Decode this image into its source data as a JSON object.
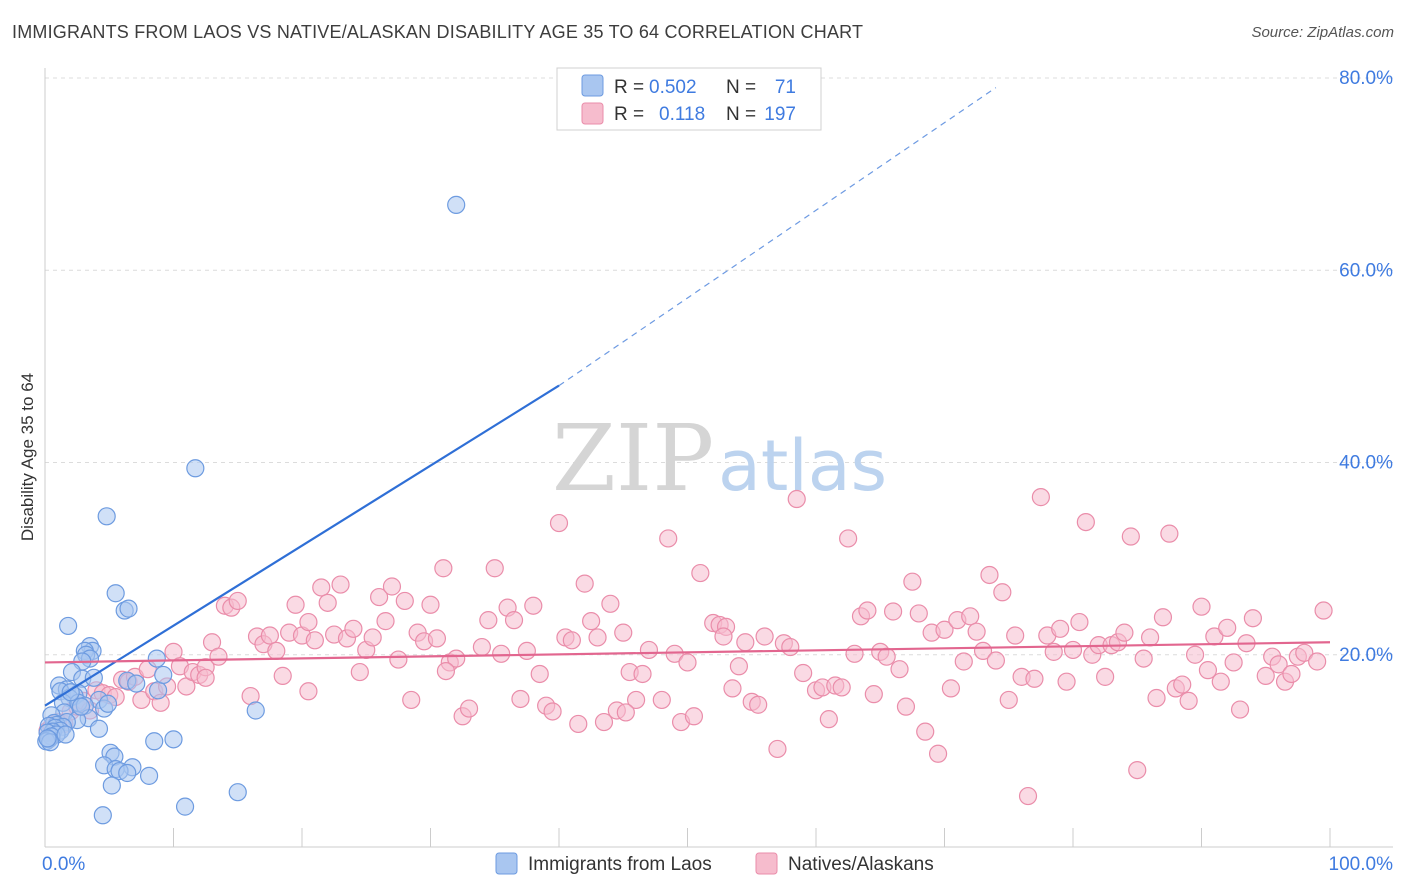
{
  "title": "IMMIGRANTS FROM LAOS VS NATIVE/ALASKAN DISABILITY AGE 35 TO 64 CORRELATION CHART",
  "source": "Source: ZipAtlas.com",
  "watermark": {
    "zip": "ZIP",
    "atlas": "atlas"
  },
  "colors": {
    "blue_fill": "#a9c6f0",
    "blue_edge": "#6d9be0",
    "blue_line": "#2f6fd6",
    "pink_fill": "#f6bccd",
    "pink_edge": "#ea8daa",
    "pink_line": "#e2668f",
    "grid": "#dcdcdc",
    "axis_text": "#3f7be0"
  },
  "legend_stats": {
    "r_label": "R =",
    "n_label": "N =",
    "rows": [
      {
        "series": "Immigrants from Laos",
        "r": "0.502",
        "n": "71"
      },
      {
        "series": "Natives/Alaskans",
        "r": "0.118",
        "n": "197"
      }
    ]
  },
  "chart_data": {
    "type": "scatter",
    "title": "IMMIGRANTS FROM LAOS VS NATIVE/ALASKAN DISABILITY AGE 35 TO 64 CORRELATION CHART",
    "xlabel": "",
    "ylabel": "Disability Age 35 to 64",
    "xlim": [
      0,
      100
    ],
    "ylim": [
      0,
      80
    ],
    "x_tick_labels": [
      "0.0%",
      "100.0%"
    ],
    "y_ticks": [
      20,
      40,
      60,
      80
    ],
    "y_tick_labels": [
      "20.0%",
      "40.0%",
      "60.0%",
      "80.0%"
    ],
    "legend_position": "bottom-center",
    "series": [
      {
        "name": "Immigrants from Laos",
        "color": "#a9c6f0",
        "trend": {
          "x1": 0,
          "y1": 14.7,
          "x2": 40,
          "y2": 48.0,
          "dashed_to_x": 74,
          "dashed_to_y": 79.0
        },
        "points": [
          [
            32,
            66.8
          ],
          [
            11.7,
            39.4
          ],
          [
            4.8,
            34.4
          ],
          [
            5.5,
            26.4
          ],
          [
            6.2,
            24.6
          ],
          [
            6.5,
            24.8
          ],
          [
            1.8,
            23.0
          ],
          [
            3.5,
            20.9
          ],
          [
            3.7,
            20.4
          ],
          [
            3.1,
            20.4
          ],
          [
            3.2,
            20.0
          ],
          [
            3.5,
            19.6
          ],
          [
            2.9,
            19.3
          ],
          [
            8.7,
            19.6
          ],
          [
            2.1,
            18.2
          ],
          [
            2.9,
            17.5
          ],
          [
            1.1,
            16.8
          ],
          [
            1.7,
            16.4
          ],
          [
            1.2,
            16.2
          ],
          [
            2.6,
            16.0
          ],
          [
            2.3,
            15.7
          ],
          [
            1.9,
            15.5
          ],
          [
            4.2,
            15.3
          ],
          [
            1.4,
            15.0
          ],
          [
            2.6,
            15.0
          ],
          [
            3.1,
            14.7
          ],
          [
            4.6,
            14.4
          ],
          [
            1.5,
            14.0
          ],
          [
            0.5,
            13.7
          ],
          [
            3.4,
            13.4
          ],
          [
            2.5,
            13.2
          ],
          [
            1.7,
            13.0
          ],
          [
            0.7,
            12.9
          ],
          [
            0.9,
            12.7
          ],
          [
            0.3,
            12.6
          ],
          [
            1.4,
            12.5
          ],
          [
            0.8,
            12.4
          ],
          [
            4.2,
            12.3
          ],
          [
            1.2,
            12.1
          ],
          [
            0.6,
            12.0
          ],
          [
            0.2,
            11.9
          ],
          [
            0.9,
            11.7
          ],
          [
            0.5,
            11.5
          ],
          [
            1.6,
            11.7
          ],
          [
            0.3,
            11.2
          ],
          [
            0.1,
            11.0
          ],
          [
            0.4,
            10.9
          ],
          [
            0.2,
            11.3
          ],
          [
            5.1,
            9.8
          ],
          [
            5.4,
            9.4
          ],
          [
            8.5,
            11.0
          ],
          [
            10.0,
            11.2
          ],
          [
            4.6,
            8.5
          ],
          [
            5.5,
            8.1
          ],
          [
            6.8,
            8.3
          ],
          [
            5.8,
            7.9
          ],
          [
            6.4,
            7.7
          ],
          [
            8.1,
            7.4
          ],
          [
            5.2,
            6.4
          ],
          [
            10.9,
            4.2
          ],
          [
            4.5,
            3.3
          ],
          [
            15.0,
            5.7
          ],
          [
            16.4,
            14.2
          ],
          [
            8.8,
            16.3
          ],
          [
            6.4,
            17.3
          ],
          [
            7.1,
            17.0
          ],
          [
            3.8,
            17.6
          ],
          [
            9.2,
            17.9
          ],
          [
            2.0,
            16.1
          ],
          [
            4.9,
            14.9
          ],
          [
            2.8,
            14.6
          ]
        ]
      },
      {
        "name": "Natives/Alaskans",
        "color": "#f6bccd",
        "trend": {
          "x1": 0,
          "y1": 19.2,
          "x2": 100,
          "y2": 21.3
        },
        "points": [
          [
            0.2,
            12.1
          ],
          [
            0.5,
            12.5
          ],
          [
            1.0,
            13.0
          ],
          [
            1.5,
            12.8
          ],
          [
            2.0,
            14.1
          ],
          [
            2.5,
            14.6
          ],
          [
            3.0,
            15.2
          ],
          [
            3.5,
            14.2
          ],
          [
            4.0,
            16.3
          ],
          [
            4.5,
            16.0
          ],
          [
            5.0,
            15.8
          ],
          [
            5.5,
            15.6
          ],
          [
            6.0,
            17.4
          ],
          [
            6.5,
            17.2
          ],
          [
            7.0,
            17.7
          ],
          [
            7.5,
            15.3
          ],
          [
            8.0,
            18.5
          ],
          [
            8.5,
            16.2
          ],
          [
            9.0,
            15.0
          ],
          [
            9.5,
            16.7
          ],
          [
            10.0,
            20.3
          ],
          [
            10.5,
            18.8
          ],
          [
            11.0,
            16.7
          ],
          [
            11.5,
            18.2
          ],
          [
            12.0,
            17.9
          ],
          [
            12.5,
            18.7
          ],
          [
            13.0,
            21.3
          ],
          [
            13.5,
            19.8
          ],
          [
            14.0,
            25.1
          ],
          [
            14.5,
            24.9
          ],
          [
            15.0,
            25.6
          ],
          [
            16.0,
            15.7
          ],
          [
            16.5,
            21.9
          ],
          [
            17.0,
            21.1
          ],
          [
            17.5,
            22.0
          ],
          [
            18.0,
            20.4
          ],
          [
            18.5,
            17.8
          ],
          [
            19.0,
            22.3
          ],
          [
            19.5,
            25.2
          ],
          [
            20.0,
            22.0
          ],
          [
            20.5,
            16.2
          ],
          [
            21.0,
            21.5
          ],
          [
            21.5,
            27.0
          ],
          [
            22.0,
            25.4
          ],
          [
            22.5,
            22.1
          ],
          [
            23.0,
            27.3
          ],
          [
            23.5,
            21.7
          ],
          [
            24.0,
            22.7
          ],
          [
            24.5,
            18.2
          ],
          [
            25.0,
            20.5
          ],
          [
            25.5,
            21.8
          ],
          [
            26.0,
            26.0
          ],
          [
            26.5,
            23.5
          ],
          [
            27.0,
            27.1
          ],
          [
            27.5,
            19.5
          ],
          [
            28.0,
            25.6
          ],
          [
            28.5,
            15.3
          ],
          [
            29.0,
            22.3
          ],
          [
            29.5,
            21.4
          ],
          [
            30.0,
            25.2
          ],
          [
            30.5,
            21.7
          ],
          [
            31.0,
            29.0
          ],
          [
            31.5,
            19.2
          ],
          [
            32.0,
            19.6
          ],
          [
            32.5,
            13.6
          ],
          [
            33.0,
            14.4
          ],
          [
            34.0,
            20.8
          ],
          [
            34.5,
            23.6
          ],
          [
            35.0,
            29.0
          ],
          [
            35.5,
            20.1
          ],
          [
            36.0,
            24.9
          ],
          [
            36.5,
            23.6
          ],
          [
            37.0,
            15.4
          ],
          [
            37.5,
            20.4
          ],
          [
            38.0,
            25.1
          ],
          [
            38.5,
            18.0
          ],
          [
            39.0,
            14.7
          ],
          [
            39.5,
            14.1
          ],
          [
            40.0,
            33.7
          ],
          [
            40.5,
            21.8
          ],
          [
            41.0,
            21.5
          ],
          [
            41.5,
            12.8
          ],
          [
            42.0,
            27.4
          ],
          [
            42.5,
            23.5
          ],
          [
            43.0,
            21.8
          ],
          [
            43.5,
            13.0
          ],
          [
            44.0,
            25.3
          ],
          [
            44.5,
            14.2
          ],
          [
            45.0,
            22.3
          ],
          [
            45.5,
            18.2
          ],
          [
            46.0,
            15.3
          ],
          [
            46.5,
            18.0
          ],
          [
            47.0,
            20.5
          ],
          [
            48.0,
            15.3
          ],
          [
            48.5,
            32.1
          ],
          [
            49.0,
            20.1
          ],
          [
            49.5,
            13.0
          ],
          [
            50.0,
            19.2
          ],
          [
            50.5,
            13.6
          ],
          [
            51.0,
            28.5
          ],
          [
            52.0,
            23.3
          ],
          [
            52.5,
            23.1
          ],
          [
            53.0,
            22.9
          ],
          [
            53.5,
            16.5
          ],
          [
            54.0,
            18.8
          ],
          [
            54.5,
            21.3
          ],
          [
            55.0,
            15.1
          ],
          [
            55.5,
            14.8
          ],
          [
            56.0,
            21.9
          ],
          [
            57.0,
            10.2
          ],
          [
            57.5,
            21.2
          ],
          [
            58.0,
            20.8
          ],
          [
            58.5,
            36.2
          ],
          [
            59.0,
            18.1
          ],
          [
            60.0,
            16.3
          ],
          [
            60.5,
            16.6
          ],
          [
            61.0,
            13.3
          ],
          [
            61.5,
            16.8
          ],
          [
            62.0,
            16.6
          ],
          [
            62.5,
            32.1
          ],
          [
            63.0,
            20.1
          ],
          [
            63.5,
            24.0
          ],
          [
            64.0,
            24.6
          ],
          [
            64.5,
            15.9
          ],
          [
            65.0,
            20.3
          ],
          [
            65.5,
            19.8
          ],
          [
            66.0,
            24.5
          ],
          [
            66.5,
            18.5
          ],
          [
            67.0,
            14.6
          ],
          [
            67.5,
            27.6
          ],
          [
            68.0,
            24.3
          ],
          [
            68.5,
            12.0
          ],
          [
            69.0,
            22.3
          ],
          [
            69.5,
            9.7
          ],
          [
            70.0,
            22.6
          ],
          [
            70.5,
            16.5
          ],
          [
            71.0,
            23.6
          ],
          [
            71.5,
            19.3
          ],
          [
            72.0,
            24.0
          ],
          [
            72.5,
            22.4
          ],
          [
            73.0,
            20.4
          ],
          [
            73.5,
            28.3
          ],
          [
            74.0,
            19.4
          ],
          [
            74.5,
            26.5
          ],
          [
            75.0,
            15.3
          ],
          [
            75.5,
            22.0
          ],
          [
            76.0,
            17.7
          ],
          [
            76.5,
            5.3
          ],
          [
            77.0,
            17.5
          ],
          [
            77.5,
            36.4
          ],
          [
            78.0,
            22.0
          ],
          [
            78.5,
            20.3
          ],
          [
            79.0,
            22.7
          ],
          [
            79.5,
            17.2
          ],
          [
            80.0,
            20.5
          ],
          [
            80.5,
            23.4
          ],
          [
            81.0,
            33.8
          ],
          [
            81.5,
            20.0
          ],
          [
            82.0,
            21.0
          ],
          [
            82.5,
            17.7
          ],
          [
            83.0,
            21.0
          ],
          [
            83.5,
            21.3
          ],
          [
            84.0,
            22.3
          ],
          [
            84.5,
            32.3
          ],
          [
            85.0,
            8.0
          ],
          [
            85.5,
            19.6
          ],
          [
            86.0,
            21.8
          ],
          [
            86.5,
            15.5
          ],
          [
            87.0,
            23.9
          ],
          [
            87.5,
            32.6
          ],
          [
            88.0,
            16.5
          ],
          [
            88.5,
            16.9
          ],
          [
            89.0,
            15.2
          ],
          [
            89.5,
            20.0
          ],
          [
            90.0,
            25.0
          ],
          [
            90.5,
            18.4
          ],
          [
            91.0,
            21.9
          ],
          [
            91.5,
            17.2
          ],
          [
            92.0,
            22.8
          ],
          [
            92.5,
            19.2
          ],
          [
            93.0,
            14.3
          ],
          [
            93.5,
            21.2
          ],
          [
            94.0,
            23.8
          ],
          [
            95.0,
            17.8
          ],
          [
            95.5,
            19.8
          ],
          [
            96.0,
            19.0
          ],
          [
            96.5,
            17.2
          ],
          [
            97.0,
            18.0
          ],
          [
            97.5,
            19.8
          ],
          [
            98.0,
            20.2
          ],
          [
            99.0,
            19.3
          ],
          [
            99.5,
            24.6
          ],
          [
            12.5,
            17.6
          ],
          [
            20.5,
            23.4
          ],
          [
            31.2,
            18.3
          ],
          [
            45.2,
            14.0
          ],
          [
            52.8,
            21.9
          ]
        ]
      }
    ]
  }
}
